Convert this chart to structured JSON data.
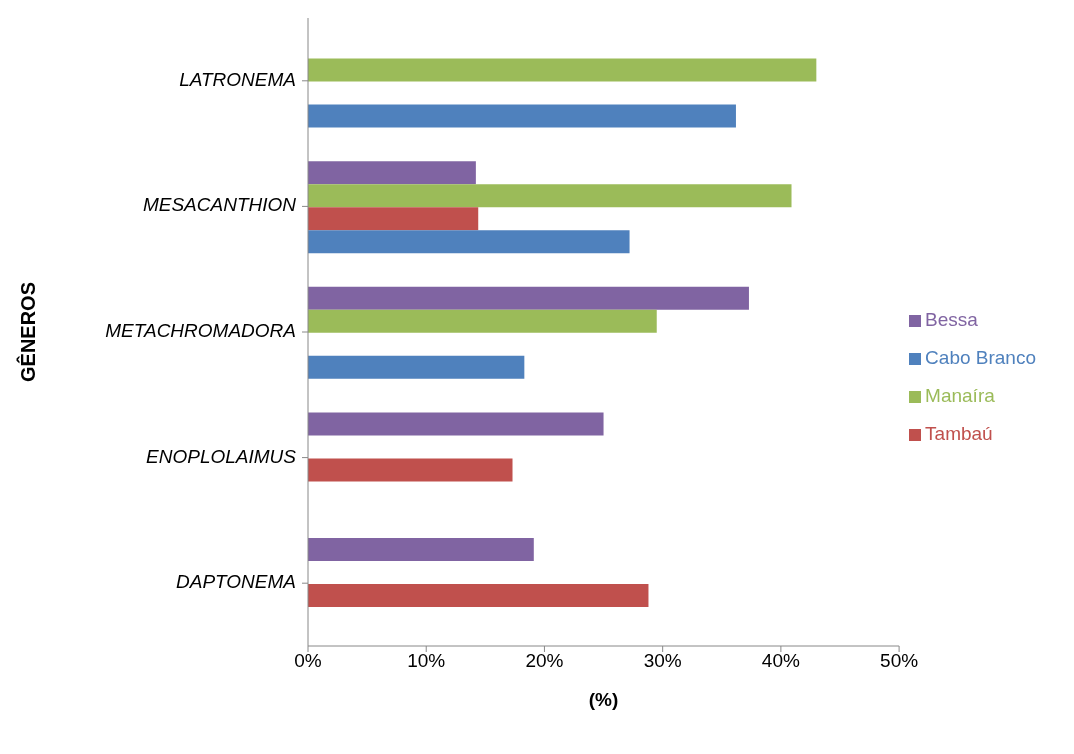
{
  "chart_data": {
    "type": "bar",
    "orientation": "horizontal",
    "xlabel": "(%)",
    "ylabel": "GÊNEROS",
    "categories": [
      "LATRONEMA",
      "MESACANTHION",
      "METACHROMADORA",
      "ENOPLOLAIMUS",
      "DAPTONEMA"
    ],
    "series": [
      {
        "name": "Bessa",
        "color": "#8064a2",
        "values": [
          0,
          14.2,
          37.3,
          25,
          19.1
        ]
      },
      {
        "name": "Manaíra",
        "color": "#9bbb59",
        "values": [
          43,
          40.9,
          29.5,
          0,
          0
        ]
      },
      {
        "name": "Tambaú",
        "color": "#c0504d",
        "values": [
          0,
          14.4,
          0,
          17.3,
          28.8
        ]
      },
      {
        "name": "Cabo Branco",
        "color": "#4f81bd",
        "values": [
          36.2,
          27.2,
          18.3,
          0,
          0
        ]
      }
    ],
    "xlim": [
      0,
      50
    ],
    "xticks": [
      {
        "value": 0,
        "label": "0%"
      },
      {
        "value": 10,
        "label": "10%"
      },
      {
        "value": 20,
        "label": "20%"
      },
      {
        "value": 30,
        "label": "30%"
      },
      {
        "value": 40,
        "label": "40%"
      },
      {
        "value": 50,
        "label": "50%"
      }
    ],
    "legend": "right"
  }
}
